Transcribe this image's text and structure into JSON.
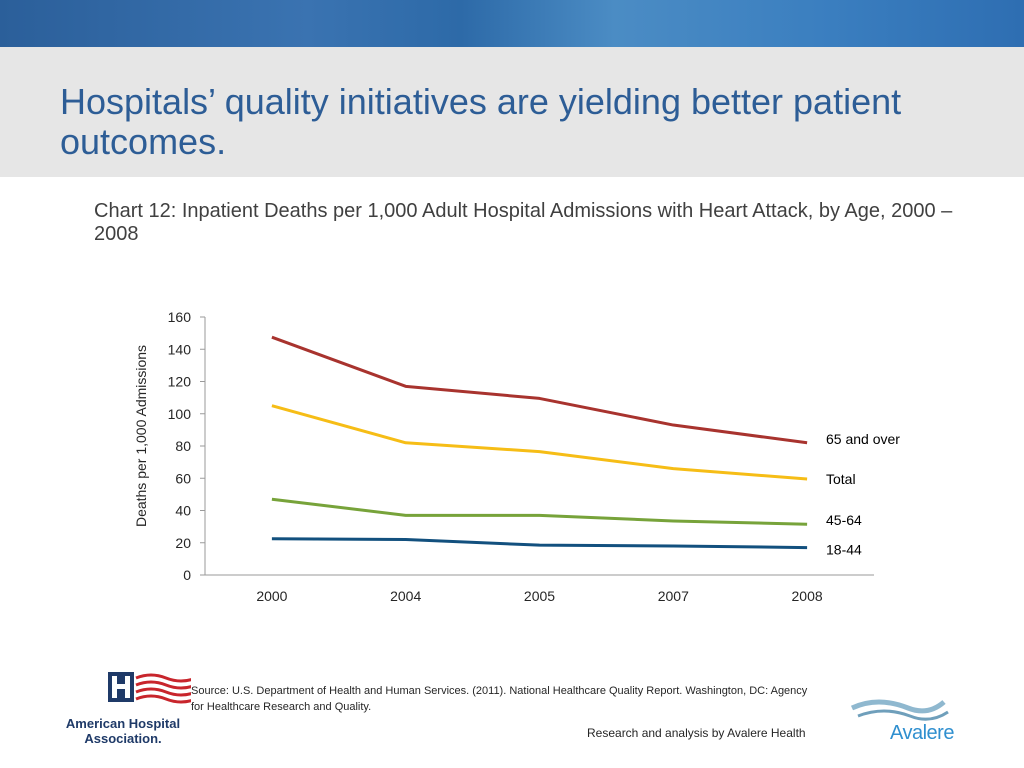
{
  "slide": {
    "title": "Hospitals’ quality initiatives are yielding better patient outcomes."
  },
  "chart_data": {
    "type": "line",
    "title": "Chart 12: Inpatient Deaths per 1,000 Adult Hospital Admissions with Heart Attack, by Age, 2000 – 2008",
    "xlabel": "",
    "ylabel": "Deaths per 1,000 Admissions",
    "categories": [
      "2000",
      "2004",
      "2005",
      "2007",
      "2008"
    ],
    "ylim": [
      0,
      160
    ],
    "yticks": [
      "0",
      "20",
      "40",
      "60",
      "80",
      "100",
      "120",
      "140",
      "160"
    ],
    "grid": false,
    "series": [
      {
        "name": "65 and over",
        "color": "#a8332e",
        "values": [
          147.5,
          117,
          109.5,
          93,
          82
        ]
      },
      {
        "name": "Total",
        "color": "#f6bd16",
        "values": [
          105,
          82,
          76.5,
          66,
          59.5
        ]
      },
      {
        "name": "45-64",
        "color": "#77a33a",
        "values": [
          47,
          37,
          37,
          33.5,
          31.5
        ]
      },
      {
        "name": "18-44",
        "color": "#12507e",
        "values": [
          22.5,
          22,
          18.5,
          18,
          17
        ]
      }
    ]
  },
  "footer": {
    "source": "Source: U.S. Department of Health and Human Services. (2011). National Healthcare Quality Report. Washington, DC: Agency for Healthcare Research and Quality.",
    "credit": "Research and analysis by Avalere Health",
    "aha_name_line1": "American Hospital",
    "aha_name_line2": "Association.",
    "avalere_name": "Avalere"
  },
  "colors": {
    "title": "#2d5d96",
    "header_band": "#2b5f9a",
    "title_band": "#e6e6e6"
  }
}
